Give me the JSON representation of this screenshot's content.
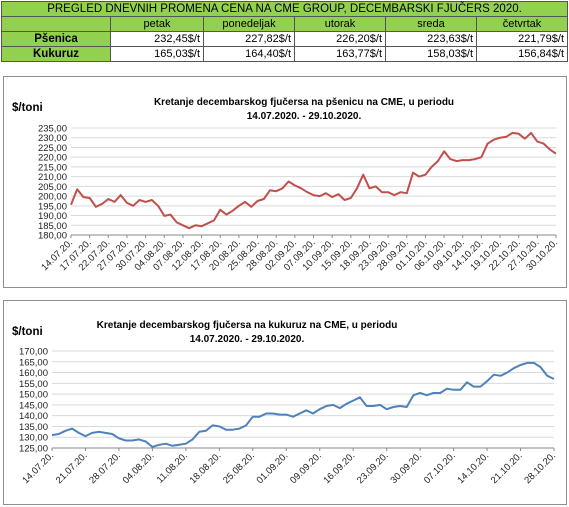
{
  "table": {
    "title": "PREGLED DNEVNIH PROMENA CENA NA CME GROUP, DECEMBARSKI  FJUČERS 2020.",
    "columns": [
      "petak",
      "ponedeljak",
      "utorak",
      "sreda",
      "četvrtak"
    ],
    "rows": [
      {
        "label": "Pšenica",
        "values": [
          "232,45$/t",
          "227,82$/t",
          "226,20$/t",
          "223,63$/t",
          "221,79$/t"
        ]
      },
      {
        "label": "Kukuruz",
        "values": [
          "165,03$/t",
          "164,40$/t",
          "163,77$/t",
          "158,03$/t",
          "156,84$/t"
        ]
      }
    ]
  },
  "chart_data": [
    {
      "type": "line",
      "title": "Kretanje decembarskog fjučersa na  pšenicu na CME, u periodu",
      "subtitle": "14.07.2020. - 29.10.2020.",
      "ylabel": "$/toni",
      "xlabel": "",
      "ylim": [
        180,
        235
      ],
      "ytick_step": 5,
      "grid": "horizontal",
      "color": "#c0504d",
      "x_tick_labels": [
        "14.07.20.",
        "17.07.20.",
        "22.07.20.",
        "27.07.20.",
        "30.07.20.",
        "04.08.20.",
        "07.08.20.",
        "12.08.20.",
        "17.08.20.",
        "20.08.20.",
        "25.08.20.",
        "28.08.20.",
        "02.09.20.",
        "07.09.20.",
        "10.09.20.",
        "15.09.20.",
        "18.09.20.",
        "23.09.20.",
        "28.09.20.",
        "01.10.20.",
        "06.10.20.",
        "09.10.20.",
        "14.10.20.",
        "19.10.20.",
        "22.10.20.",
        "27.10.20.",
        "30.10.20."
      ],
      "values": [
        195.5,
        203.5,
        199.5,
        199,
        194.5,
        196,
        198.5,
        197,
        200.5,
        196.5,
        195,
        198,
        197,
        198,
        195,
        189.8,
        190.5,
        186.5,
        185,
        183.5,
        185,
        184.5,
        186,
        187.5,
        193,
        190.5,
        192.5,
        195,
        197,
        194.5,
        197.5,
        198.5,
        203,
        202.5,
        204,
        207.5,
        205.5,
        204,
        202,
        200.5,
        200,
        201.5,
        199.5,
        201,
        198,
        199,
        204,
        211,
        204,
        205,
        202,
        202,
        200.5,
        202,
        201.5,
        212,
        210,
        211,
        215,
        218,
        223,
        219,
        218,
        218.5,
        218.5,
        219,
        220,
        227,
        229,
        230,
        230.5,
        232.5,
        232,
        229.5,
        232.5,
        228,
        227,
        224,
        221.8
      ]
    },
    {
      "type": "line",
      "title": "Kretanje decembarskog fjučersa na  kukuruz na CME, u periodu",
      "subtitle": "14.07.2020. - 29.10.2020.",
      "ylabel": "$/toni",
      "xlabel": "",
      "ylim": [
        125,
        170
      ],
      "ytick_step": 5,
      "grid": "horizontal",
      "color": "#4f81bd",
      "x_tick_labels": [
        "14.07.20.",
        "21.07.20.",
        "28.07.20.",
        "04.08.20.",
        "11.08.20.",
        "18.08.20.",
        "25.08.20.",
        "01.09.20.",
        "09.09.20.",
        "16.09.20.",
        "23.09.20.",
        "30.09.20.",
        "07.10.20.",
        "14.10.20.",
        "21.10.20.",
        "28.10.20."
      ],
      "values": [
        131,
        131.5,
        133,
        134,
        132,
        130.5,
        132,
        132.5,
        132,
        131.5,
        129.5,
        128.5,
        128.5,
        129,
        128,
        125.5,
        126.5,
        127,
        126,
        126.5,
        127,
        129,
        132.5,
        133,
        135.5,
        135,
        133.5,
        133.5,
        134,
        135.5,
        139.5,
        139.5,
        141,
        141,
        140.5,
        140.5,
        139.5,
        141,
        142.5,
        141,
        143,
        144.5,
        145,
        143.5,
        145.5,
        147,
        148.5,
        144.5,
        144.5,
        145,
        143,
        144,
        144.5,
        144,
        149.5,
        150.5,
        149.5,
        150.5,
        150.5,
        152.5,
        152,
        152,
        155.5,
        153.5,
        153.5,
        156,
        159,
        158.5,
        160,
        162,
        163.5,
        164.5,
        164.5,
        162.5,
        158.5,
        157
      ]
    }
  ]
}
